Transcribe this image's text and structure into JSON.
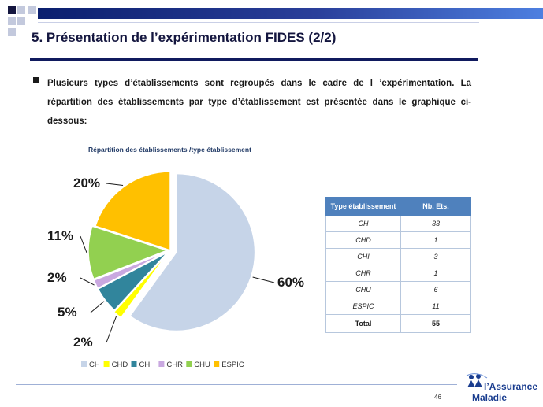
{
  "slide": {
    "title": "5. Présentation de l’expérimentation FIDES (2/2)",
    "intro": "Plusieurs types d’établissements sont regroupés dans le cadre de l ’expérimentation. La répartition des établissements par type d’établissement est présentée dans le graphique ci-dessous:",
    "page_number": "46"
  },
  "logo": {
    "line1": "l’Assurance",
    "line2": "Maladie"
  },
  "colors": {
    "brand_blue": "#101a5e",
    "table_header": "#4f81bd"
  },
  "chart_data": {
    "type": "pie",
    "title": "Répartition des établissements /type établissement",
    "categories": [
      "CH",
      "CHD",
      "CHI",
      "CHR",
      "CHU",
      "ESPIC"
    ],
    "values": [
      33,
      1,
      3,
      1,
      6,
      11
    ],
    "percent_labels": [
      "60%",
      "2%",
      "5%",
      "2%",
      "11%",
      "20%"
    ],
    "colors": [
      "#c6d4e8",
      "#ffff00",
      "#31859c",
      "#c9a8e0",
      "#92d050",
      "#ffc000"
    ],
    "legend_position": "bottom"
  },
  "table": {
    "headers": [
      "Type établissement",
      "Nb. Ets."
    ],
    "rows": [
      [
        "CH",
        "33"
      ],
      [
        "CHD",
        "1"
      ],
      [
        "CHI",
        "3"
      ],
      [
        "CHR",
        "1"
      ],
      [
        "CHU",
        "6"
      ],
      [
        "ESPIC",
        "11"
      ]
    ],
    "total": [
      "Total",
      "55"
    ]
  }
}
